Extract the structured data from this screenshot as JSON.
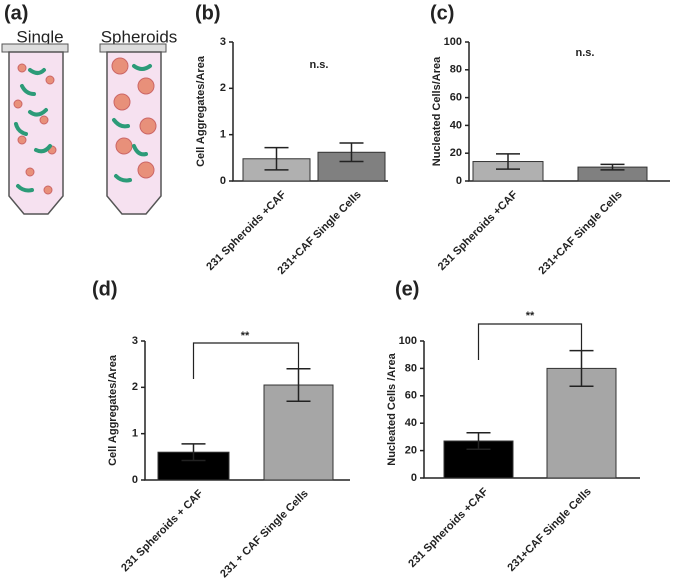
{
  "diagram": {
    "label": "(a)",
    "tubes": [
      "Single",
      "Spheroids"
    ]
  },
  "chart_data": [
    {
      "type": "bar",
      "label": "(b)",
      "ylabel": "Cell Aggregates/Area",
      "annotation": "n.s.",
      "categories": [
        "231 Spheroids +CAF",
        "231+CAF Single Cells"
      ],
      "values": [
        0.48,
        0.62
      ],
      "errors": [
        0.24,
        0.2
      ],
      "colors": [
        "#b0b0b0",
        "#808080"
      ],
      "ylim": [
        0,
        3
      ],
      "yticks": [
        0,
        1,
        2,
        3
      ]
    },
    {
      "type": "bar",
      "label": "(c)",
      "ylabel": "Nucleated  Cells/Area",
      "annotation": "n.s.",
      "categories": [
        "231 Spheroids +CAF",
        "231+CAF Single Cells"
      ],
      "values": [
        14,
        10
      ],
      "errors": [
        5.5,
        2
      ],
      "colors": [
        "#b0b0b0",
        "#808080"
      ],
      "ylim": [
        0,
        100
      ],
      "yticks": [
        0,
        20,
        40,
        60,
        80,
        100
      ]
    },
    {
      "type": "bar",
      "label": "(d)",
      "ylabel": "Cell Aggregates/Area",
      "annotation": "**",
      "categories": [
        "231 Spheroids + CAF",
        "231 + CAF Single Cells"
      ],
      "values": [
        0.6,
        2.05
      ],
      "errors": [
        0.18,
        0.35
      ],
      "colors": [
        "#000000",
        "#a6a6a6"
      ],
      "ylim": [
        0,
        3
      ],
      "yticks": [
        0,
        1,
        2,
        3
      ]
    },
    {
      "type": "bar",
      "label": "(e)",
      "ylabel": "Nucleated Cells /Area",
      "annotation": "**",
      "categories": [
        "231 Spheroids +CAF",
        "231+CAF Single Cells"
      ],
      "values": [
        27,
        80
      ],
      "errors": [
        6,
        13
      ],
      "colors": [
        "#000000",
        "#a6a6a6"
      ],
      "ylim": [
        0,
        100
      ],
      "yticks": [
        0,
        20,
        40,
        60,
        80,
        100
      ]
    }
  ]
}
